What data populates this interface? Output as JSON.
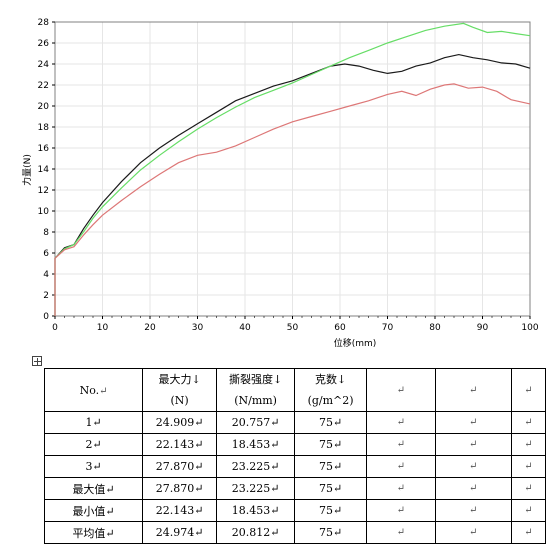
{
  "chart_data": {
    "type": "line",
    "xlabel": "位移(mm)",
    "ylabel": "力量(N)",
    "xlim": [
      0,
      100
    ],
    "ylim": [
      0,
      28
    ],
    "x_ticks": [
      0,
      10,
      20,
      30,
      40,
      50,
      60,
      70,
      80,
      90,
      100
    ],
    "y_ticks": [
      0,
      2,
      4,
      6,
      8,
      10,
      12,
      14,
      16,
      18,
      20,
      22,
      24,
      26,
      28
    ],
    "grid": true,
    "series": [
      {
        "color": "#1a1a1a",
        "points": [
          [
            0,
            5.5
          ],
          [
            2,
            6.5
          ],
          [
            4,
            6.8
          ],
          [
            6,
            8.3
          ],
          [
            8,
            9.6
          ],
          [
            10,
            10.8
          ],
          [
            14,
            12.8
          ],
          [
            18,
            14.6
          ],
          [
            22,
            16.0
          ],
          [
            26,
            17.2
          ],
          [
            30,
            18.3
          ],
          [
            34,
            19.4
          ],
          [
            38,
            20.5
          ],
          [
            42,
            21.2
          ],
          [
            46,
            21.9
          ],
          [
            50,
            22.4
          ],
          [
            54,
            23.1
          ],
          [
            58,
            23.8
          ],
          [
            61,
            24.0
          ],
          [
            64,
            23.8
          ],
          [
            67,
            23.4
          ],
          [
            70,
            23.1
          ],
          [
            73,
            23.3
          ],
          [
            76,
            23.8
          ],
          [
            79,
            24.1
          ],
          [
            82,
            24.6
          ],
          [
            85,
            24.9
          ],
          [
            88,
            24.6
          ],
          [
            91,
            24.4
          ],
          [
            94,
            24.1
          ],
          [
            97,
            24.0
          ],
          [
            100,
            23.6
          ]
        ]
      },
      {
        "color": "#66dd66",
        "points": [
          [
            0,
            5.5
          ],
          [
            2,
            6.4
          ],
          [
            4,
            6.8
          ],
          [
            6,
            8.0
          ],
          [
            8,
            9.3
          ],
          [
            10,
            10.4
          ],
          [
            14,
            12.2
          ],
          [
            18,
            13.9
          ],
          [
            22,
            15.3
          ],
          [
            26,
            16.6
          ],
          [
            30,
            17.8
          ],
          [
            34,
            18.9
          ],
          [
            38,
            19.9
          ],
          [
            42,
            20.8
          ],
          [
            46,
            21.5
          ],
          [
            50,
            22.2
          ],
          [
            54,
            23.0
          ],
          [
            58,
            23.8
          ],
          [
            62,
            24.6
          ],
          [
            66,
            25.3
          ],
          [
            70,
            26.0
          ],
          [
            74,
            26.6
          ],
          [
            78,
            27.2
          ],
          [
            82,
            27.6
          ],
          [
            86,
            27.87
          ],
          [
            88,
            27.5
          ],
          [
            91,
            27.0
          ],
          [
            94,
            27.1
          ],
          [
            97,
            26.9
          ],
          [
            100,
            26.7
          ]
        ]
      },
      {
        "color": "#dd7777",
        "points": [
          [
            0,
            5.5
          ],
          [
            2,
            6.3
          ],
          [
            4,
            6.6
          ],
          [
            6,
            7.7
          ],
          [
            8,
            8.7
          ],
          [
            10,
            9.6
          ],
          [
            14,
            11.0
          ],
          [
            18,
            12.3
          ],
          [
            22,
            13.5
          ],
          [
            26,
            14.6
          ],
          [
            30,
            15.3
          ],
          [
            34,
            15.6
          ],
          [
            38,
            16.2
          ],
          [
            42,
            17.0
          ],
          [
            46,
            17.8
          ],
          [
            50,
            18.5
          ],
          [
            54,
            19.0
          ],
          [
            58,
            19.5
          ],
          [
            62,
            20.0
          ],
          [
            66,
            20.5
          ],
          [
            70,
            21.1
          ],
          [
            73,
            21.4
          ],
          [
            76,
            21.0
          ],
          [
            79,
            21.6
          ],
          [
            82,
            22.0
          ],
          [
            84,
            22.1
          ],
          [
            87,
            21.7
          ],
          [
            90,
            21.8
          ],
          [
            93,
            21.4
          ],
          [
            96,
            20.6
          ],
          [
            100,
            20.2
          ]
        ]
      }
    ]
  },
  "table": {
    "header": [
      "No.",
      "最大力↓",
      "(N)",
      "撕裂强度↓",
      "(N/mm)",
      "克数↓",
      "(g/m^2)",
      "↵",
      "↵",
      "↵"
    ],
    "rows": [
      [
        "1↵",
        "24.909↵",
        "20.757↵",
        "75↵",
        "↵",
        "↵",
        "↵"
      ],
      [
        "2↵",
        "22.143↵",
        "18.453↵",
        "75↵",
        "↵",
        "↵",
        "↵"
      ],
      [
        "3↵",
        "27.870↵",
        "23.225↵",
        "75↵",
        "↵",
        "↵",
        "↵"
      ],
      [
        "最大值↵",
        "27.870↵",
        "23.225↵",
        "75↵",
        "↵",
        "↵",
        "↵"
      ],
      [
        "最小值↵",
        "22.143↵",
        "18.453↵",
        "75↵",
        "↵",
        "↵",
        "↵"
      ],
      [
        "平均值↵",
        "24.974↵",
        "20.812↵",
        "75↵",
        "↵",
        "↵",
        "↵"
      ]
    ]
  }
}
